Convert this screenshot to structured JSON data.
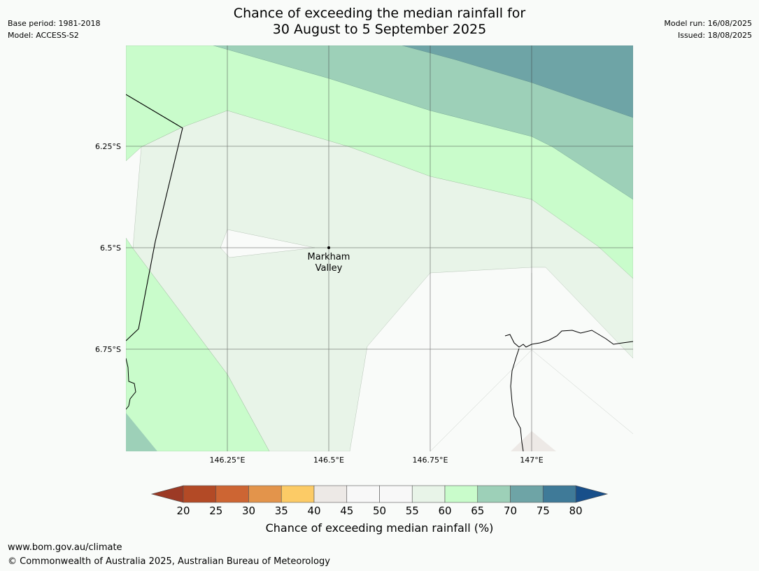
{
  "title_line1": "Chance of exceeding the median rainfall for",
  "title_line2": "30 August to 5 September 2025",
  "meta_left": {
    "base_period": "Base period: 1981-2018",
    "model": "Model: ACCESS-S2"
  },
  "meta_right": {
    "model_run": "Model run: 16/08/2025",
    "issued": "Issued: 18/08/2025"
  },
  "map": {
    "lat_labels": [
      "6.25°S",
      "6.5°S",
      "6.75°S"
    ],
    "lon_labels": [
      "146.25°E",
      "146.5°E",
      "146.75°E",
      "147°E"
    ],
    "place_name_line1": "Markham",
    "place_name_line2": "Valley"
  },
  "colorbar": {
    "tick_labels": [
      "20",
      "25",
      "30",
      "35",
      "40",
      "45",
      "50",
      "55",
      "60",
      "65",
      "70",
      "75",
      "80"
    ],
    "under_color": "#9c3a25",
    "over_color": "#184f8a",
    "colors": [
      "#b34a26",
      "#cd6533",
      "#e3944b",
      "#fccb66",
      "#ede9e6",
      "#f8f8f8",
      "#f8f8f8",
      "#e8f4e8",
      "#c9fccb",
      "#9dd0b8",
      "#6ea4a6",
      "#3f7a98"
    ],
    "label": "Chance of exceeding median rainfall (%)"
  },
  "colors": {
    "class_60_65": "#c9fccb",
    "class_65_70": "#9dd0b8",
    "class_70_75": "#6ea4a6",
    "class_55_60": "#e8f4e8",
    "class_45_55": "#f9fbf9",
    "class_40_45": "#ede9e6"
  },
  "footer": {
    "url": "www.bom.gov.au/climate",
    "copyright": "© Commonwealth of Australia 2025, Australian Bureau of Meteorology"
  }
}
